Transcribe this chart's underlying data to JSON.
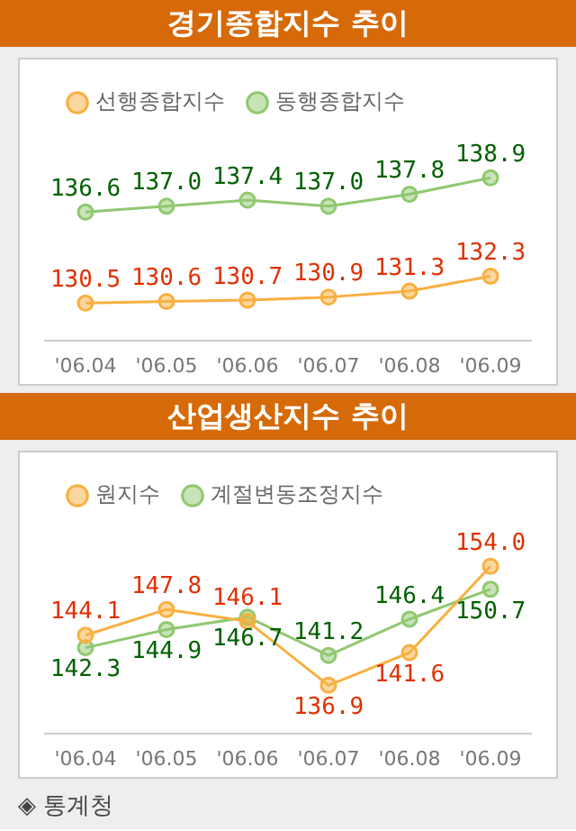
{
  "chart_data": [
    {
      "type": "line",
      "title": "경기종합지수 추이",
      "categories": [
        "'06.04",
        "'06.05",
        "'06.06",
        "'06.07",
        "'06.08",
        "'06.09"
      ],
      "series": [
        {
          "name": "선행종합지수",
          "color": "#f8b040",
          "values": [
            130.5,
            130.6,
            130.7,
            130.9,
            131.3,
            132.3
          ],
          "value_labels": [
            "130.5",
            "130.6",
            "130.7",
            "130.9",
            "131.3",
            "132.3"
          ]
        },
        {
          "name": "동행종합지수",
          "color": "#90c870",
          "values": [
            136.6,
            137,
            137.4,
            137,
            137.8,
            138.9
          ],
          "value_labels": [
            "136.6",
            "137.0",
            "137.4",
            "137.0",
            "137.8",
            "138.9"
          ]
        }
      ],
      "legend": "top left",
      "marker": "circle",
      "tick_labels": "x",
      "grid": false
    },
    {
      "type": "line",
      "title": "산업생산지수 추이",
      "categories": [
        "'06.04",
        "'06.05",
        "'06.06",
        "'06.07",
        "'06.08",
        "'06.09"
      ],
      "series": [
        {
          "name": "원지수",
          "color": "#f8b040",
          "values": [
            144.1,
            147.8,
            146.1,
            136.9,
            141.6,
            154
          ],
          "value_labels": [
            "144.1",
            "147.8",
            "146.1",
            "136.9",
            "141.6",
            "154.0"
          ]
        },
        {
          "name": "계절변동조정지수",
          "color": "#90c870",
          "values": [
            142.3,
            144.9,
            146.7,
            141.2,
            146.4,
            150.7
          ],
          "value_labels": [
            "142.3",
            "144.9",
            "146.7",
            "141.2",
            "146.4",
            "150.7"
          ]
        }
      ],
      "legend": "top left",
      "marker": "circle",
      "tick_labels": "x",
      "grid": false,
      "annotations": [
        "◈ 통계청"
      ]
    }
  ]
}
